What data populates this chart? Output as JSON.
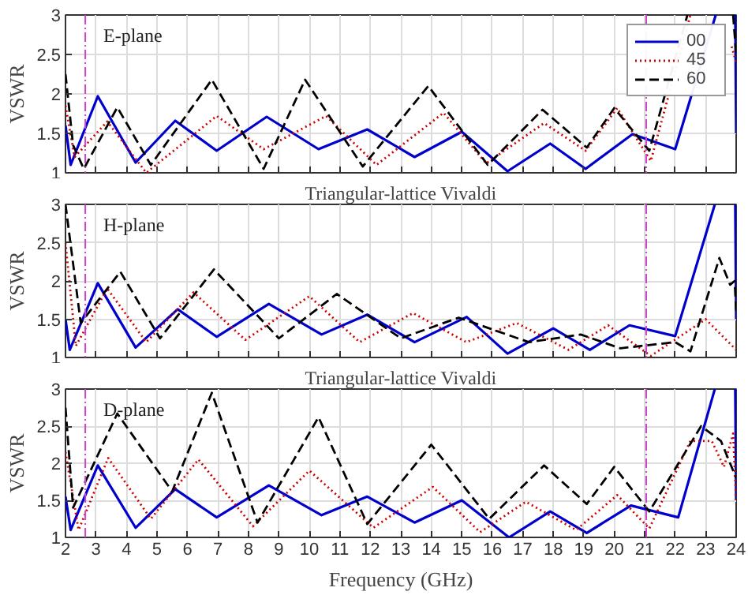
{
  "chart_data": [
    {
      "type": "line",
      "ylabel": "VSWR",
      "annotations": [
        "E-plane"
      ],
      "xlim": [
        2,
        24
      ],
      "ylim": [
        1,
        3
      ],
      "xticks": [
        2,
        3,
        4,
        5,
        6,
        7,
        8,
        9,
        10,
        11,
        12,
        13,
        14,
        15,
        16,
        17,
        18,
        19,
        20,
        21,
        22,
        23,
        24
      ],
      "yticks": [
        1,
        1.5,
        2,
        2.5,
        3
      ],
      "grid": true,
      "legend": "top right",
      "tick_labels": "y",
      "ref_lines": [
        {
          "axis": "x",
          "value": 2.65,
          "label": null,
          "color": "#cc44cc",
          "line_style": "dashdot"
        },
        {
          "axis": "x",
          "value": 21.05,
          "label": null,
          "color": "#cc44cc",
          "line_style": "dashdot"
        }
      ],
      "series": [
        {
          "name": "00",
          "color": "#0000cc",
          "line_style": "solid",
          "x": [
            2.0,
            2.17,
            3.06,
            4.3,
            5.6,
            6.96,
            8.6,
            10.3,
            11.9,
            13.45,
            15.0,
            16.5,
            17.9,
            19.06,
            20.6,
            22.0,
            23.33,
            23.5,
            23.97,
            24.0
          ],
          "values": [
            1.6,
            1.1,
            1.97,
            1.13,
            1.66,
            1.28,
            1.71,
            1.3,
            1.55,
            1.2,
            1.52,
            1.02,
            1.37,
            1.05,
            1.49,
            1.3,
            3.0,
            null,
            3.0,
            1.5
          ]
        },
        {
          "name": "45",
          "color": "#cc0000",
          "line_style": "dotted",
          "x": [
            2.0,
            2.3,
            3.37,
            4.65,
            6.96,
            8.5,
            10.55,
            12.2,
            14.4,
            15.8,
            17.7,
            19.06,
            20.1,
            21.2,
            22.5,
            23.0,
            23.85,
            24.0
          ],
          "values": [
            1.85,
            1.2,
            1.65,
            1.0,
            1.72,
            1.3,
            1.72,
            1.1,
            1.76,
            1.12,
            1.63,
            1.28,
            1.82,
            1.15,
            3.0,
            null,
            2.6,
            2.4
          ]
        },
        {
          "name": "60",
          "color": "#000000",
          "line_style": "dashed",
          "x": [
            2.0,
            2.25,
            2.6,
            3.7,
            4.8,
            6.8,
            8.5,
            9.86,
            11.75,
            13.9,
            15.85,
            17.65,
            19.1,
            20.0,
            21.15,
            22.4,
            23.0,
            23.9,
            24.0
          ],
          "values": [
            2.25,
            1.35,
            1.05,
            1.83,
            1.1,
            2.18,
            1.05,
            2.18,
            1.08,
            2.1,
            1.1,
            1.8,
            1.32,
            1.82,
            1.28,
            3.0,
            null,
            3.0,
            2.5
          ]
        }
      ]
    },
    {
      "type": "line",
      "title": "Triangular-lattice Vivaldi",
      "ylabel": "VSWR",
      "annotations": [
        "H-plane"
      ],
      "xlim": [
        2,
        24
      ],
      "ylim": [
        1,
        3
      ],
      "xticks": [
        2,
        3,
        4,
        5,
        6,
        7,
        8,
        9,
        10,
        11,
        12,
        13,
        14,
        15,
        16,
        17,
        18,
        19,
        20,
        21,
        22,
        23,
        24
      ],
      "yticks": [
        1,
        1.5,
        2,
        2.5,
        3
      ],
      "grid": true,
      "tick_labels": "y",
      "ref_lines": [
        {
          "axis": "x",
          "value": 2.65,
          "label": null,
          "color": "#cc44cc",
          "line_style": "dashdot"
        },
        {
          "axis": "x",
          "value": 21.05,
          "label": null,
          "color": "#cc44cc",
          "line_style": "dashdot"
        }
      ],
      "series": [
        {
          "color": "#0000cc",
          "line_style": "solid",
          "x": [
            2.0,
            2.14,
            3.06,
            4.3,
            5.68,
            6.96,
            8.67,
            10.4,
            11.9,
            13.45,
            15.16,
            16.5,
            18.0,
            19.2,
            20.5,
            22.0,
            23.3,
            23.6,
            23.97,
            24.0
          ],
          "values": [
            1.5,
            1.1,
            1.97,
            1.13,
            1.63,
            1.27,
            1.7,
            1.3,
            1.56,
            1.2,
            1.53,
            1.05,
            1.38,
            1.1,
            1.42,
            1.28,
            3.0,
            null,
            3.0,
            1.5
          ]
        },
        {
          "color": "#cc0000",
          "line_style": "dotted",
          "x": [
            2.0,
            2.34,
            3.37,
            4.65,
            6.2,
            7.9,
            10.0,
            11.65,
            13.4,
            15.15,
            16.8,
            18.5,
            19.8,
            21.2,
            23.0,
            24.0
          ],
          "values": [
            2.5,
            1.15,
            1.9,
            1.2,
            1.85,
            1.23,
            1.8,
            1.2,
            1.58,
            1.2,
            1.45,
            1.1,
            1.42,
            1.02,
            1.5,
            1.1
          ]
        },
        {
          "color": "#000000",
          "line_style": "dashed",
          "x": [
            2.0,
            2.5,
            3.8,
            5.1,
            6.87,
            9.0,
            10.9,
            13.0,
            14.9,
            17.2,
            18.9,
            20.2,
            22.0,
            22.5,
            23.45,
            23.8,
            23.95,
            24.0
          ],
          "values": [
            3.0,
            1.45,
            2.12,
            1.25,
            2.15,
            1.25,
            1.83,
            1.25,
            1.52,
            1.2,
            1.3,
            1.12,
            1.2,
            1.08,
            2.3,
            1.95,
            2.0,
            1.6
          ]
        }
      ]
    },
    {
      "type": "line",
      "title": "Triangular-lattice Vivaldi",
      "xlabel": "Frequency (GHz)",
      "ylabel": "VSWR",
      "annotations": [
        "D-plane"
      ],
      "xlim": [
        2,
        24
      ],
      "ylim": [
        1,
        3
      ],
      "xticks": [
        2,
        3,
        4,
        5,
        6,
        7,
        8,
        9,
        10,
        11,
        12,
        13,
        14,
        15,
        16,
        17,
        18,
        19,
        20,
        21,
        22,
        23,
        24
      ],
      "yticks": [
        1,
        1.5,
        2,
        2.5,
        3
      ],
      "grid": true,
      "ref_lines": [
        {
          "axis": "x",
          "value": 2.65,
          "label": null,
          "color": "#cc44cc",
          "line_style": "dashdot"
        },
        {
          "axis": "x",
          "value": 21.05,
          "label": null,
          "color": "#cc44cc",
          "line_style": "dashdot"
        }
      ],
      "series": [
        {
          "color": "#0000cc",
          "line_style": "solid",
          "x": [
            2.0,
            2.17,
            3.06,
            4.3,
            5.6,
            6.96,
            8.67,
            10.4,
            11.9,
            13.45,
            15.0,
            16.55,
            17.9,
            19.1,
            20.55,
            22.1,
            23.3,
            23.6,
            23.97,
            24.0
          ],
          "values": [
            1.55,
            1.1,
            1.97,
            1.13,
            1.65,
            1.27,
            1.7,
            1.3,
            1.55,
            1.2,
            1.5,
            1.0,
            1.35,
            1.06,
            1.43,
            1.27,
            3.0,
            null,
            3.0,
            1.5
          ]
        },
        {
          "color": "#cc0000",
          "line_style": "dotted",
          "x": [
            2.0,
            2.43,
            3.4,
            4.8,
            6.36,
            8.15,
            10.0,
            12.1,
            14.05,
            15.6,
            17.1,
            18.75,
            20.1,
            21.15,
            22.5,
            23.2,
            23.6,
            23.9,
            24.0
          ],
          "values": [
            2.15,
            1.1,
            2.07,
            1.25,
            2.05,
            1.15,
            1.9,
            1.13,
            1.68,
            1.07,
            1.48,
            1.1,
            1.57,
            1.12,
            2.3,
            2.3,
            1.95,
            2.4,
            1.5
          ]
        },
        {
          "color": "#000000",
          "line_style": "dashed",
          "x": [
            2.0,
            2.25,
            3.7,
            5.5,
            6.8,
            8.3,
            10.3,
            11.9,
            14.0,
            15.9,
            17.7,
            19.1,
            20.0,
            21.15,
            22.85,
            23.5,
            24.0
          ],
          "values": [
            2.75,
            1.4,
            2.67,
            1.62,
            2.95,
            1.2,
            2.62,
            1.18,
            2.25,
            1.25,
            1.97,
            1.45,
            1.95,
            1.35,
            2.5,
            2.3,
            1.8
          ]
        }
      ]
    }
  ]
}
